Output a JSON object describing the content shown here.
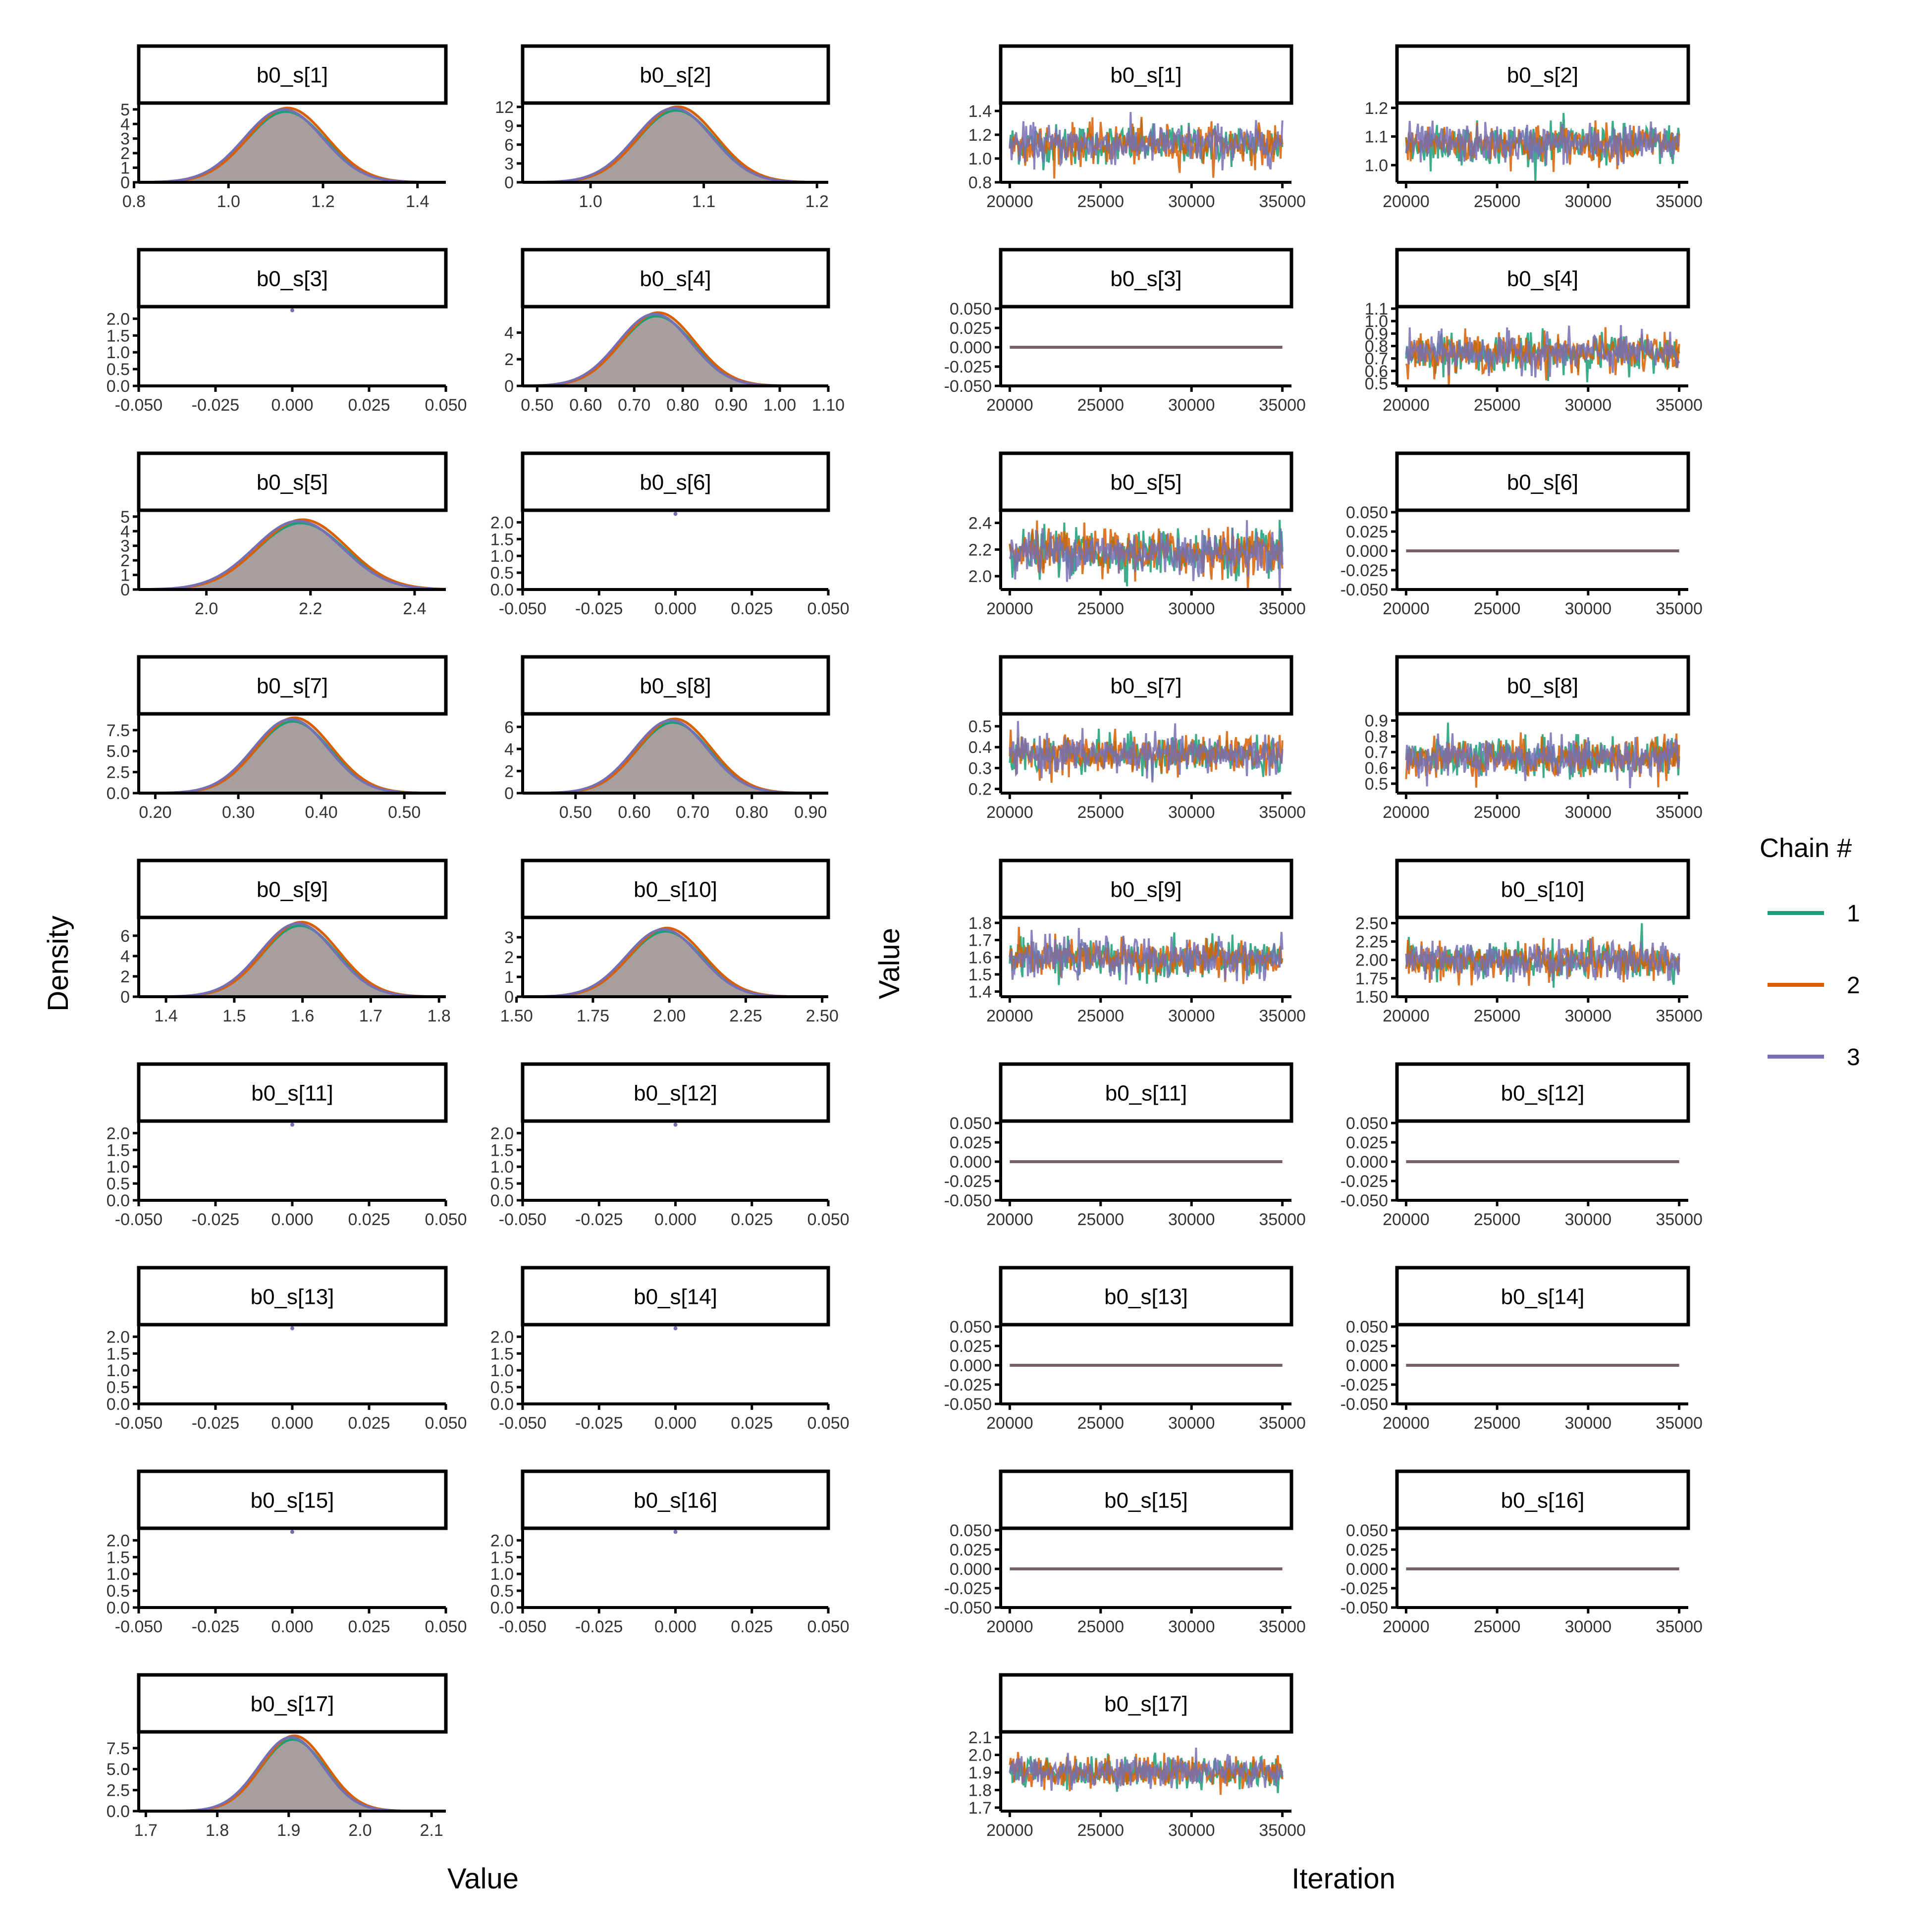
{
  "figure": {
    "density_xlabel": "Value",
    "density_ylabel": "Density",
    "trace_xlabel": "Iteration",
    "trace_ylabel": "Value",
    "legend_title": "Chain #",
    "legend_entries": [
      {
        "label": "1",
        "color": "#1B9E77"
      },
      {
        "label": "2",
        "color": "#D95F02"
      },
      {
        "label": "3",
        "color": "#7570B3"
      }
    ],
    "fill_color": "#9A9290",
    "flat_trace_color": "#766266"
  },
  "chart_data": [
    {
      "type": "area",
      "title": "Density",
      "xlabel": "Value",
      "ylabel": "Density",
      "panels": [
        {
          "title": "b0_s[1]",
          "xlim": [
            0.81,
            1.46
          ],
          "xticks": [
            0.8,
            1.0,
            1.2,
            1.4
          ],
          "ylim": [
            0,
            5.3
          ],
          "yticks": [
            0,
            1,
            2,
            3,
            4,
            5
          ],
          "mean": 1.12,
          "sd": 0.083,
          "peak": 5.0
        },
        {
          "title": "b0_s[2]",
          "xlim": [
            0.94,
            1.21
          ],
          "xticks": [
            1.0,
            1.1,
            1.2
          ],
          "ylim": [
            0,
            12.3
          ],
          "yticks": [
            0,
            3,
            6,
            9,
            12
          ],
          "mean": 1.075,
          "sd": 0.034,
          "peak": 11.8
        },
        {
          "title": "b0_s[3]",
          "xlim": [
            -0.05,
            0.05
          ],
          "xticks": [
            -0.05,
            -0.025,
            0.0,
            0.025,
            0.05
          ],
          "tick_labels": [
            "-0.050",
            "-0.025",
            "0.000",
            "0.025",
            "0.050"
          ],
          "ylim": [
            0,
            2.3
          ],
          "yticks": [
            0,
            0.5,
            1.0,
            1.5,
            2.0
          ],
          "point": [
            0.0,
            2.25
          ]
        },
        {
          "title": "b0_s[4]",
          "xlim": [
            0.47,
            1.1
          ],
          "xticks": [
            0.5,
            0.6,
            0.7,
            0.8,
            0.9,
            1.0,
            1.1
          ],
          "ylim": [
            0,
            5.8
          ],
          "yticks": [
            0,
            2,
            4
          ],
          "mean": 0.745,
          "sd": 0.075,
          "peak": 5.4
        },
        {
          "title": "b0_s[5]",
          "xlim": [
            1.87,
            2.46
          ],
          "xticks": [
            2.0,
            2.2,
            2.4
          ],
          "ylim": [
            0,
            5.3
          ],
          "yticks": [
            0,
            1,
            2,
            3,
            4,
            5
          ],
          "mean": 2.18,
          "sd": 0.085,
          "peak": 4.7
        },
        {
          "title": "b0_s[6]",
          "xlim": [
            -0.05,
            0.05
          ],
          "xticks": [
            -0.05,
            -0.025,
            0.0,
            0.025,
            0.05
          ],
          "tick_labels": [
            "-0.050",
            "-0.025",
            "0.000",
            "0.025",
            "0.050"
          ],
          "ylim": [
            0,
            2.3
          ],
          "yticks": [
            0,
            0.5,
            1.0,
            1.5,
            2.0
          ],
          "point": [
            0.0,
            2.25
          ]
        },
        {
          "title": "b0_s[7]",
          "xlim": [
            0.18,
            0.55
          ],
          "xticks": [
            0.2,
            0.3,
            0.4,
            0.5
          ],
          "ylim": [
            0,
            9.2
          ],
          "yticks": [
            0,
            2.5,
            5.0,
            7.5
          ],
          "mean": 0.365,
          "sd": 0.045,
          "peak": 8.8
        },
        {
          "title": "b0_s[8]",
          "xlim": [
            0.41,
            0.93
          ],
          "xticks": [
            0.5,
            0.6,
            0.7,
            0.8,
            0.9
          ],
          "ylim": [
            0,
            7.0
          ],
          "yticks": [
            0,
            2,
            4,
            6
          ],
          "mean": 0.665,
          "sd": 0.062,
          "peak": 6.6
        },
        {
          "title": "b0_s[9]",
          "xlim": [
            1.36,
            1.81
          ],
          "xticks": [
            1.4,
            1.5,
            1.6,
            1.7,
            1.8
          ],
          "ylim": [
            0,
            7.6
          ],
          "yticks": [
            0,
            2,
            4,
            6
          ],
          "mean": 1.595,
          "sd": 0.055,
          "peak": 7.2
        },
        {
          "title": "b0_s[10]",
          "xlim": [
            1.52,
            2.52
          ],
          "xticks": [
            1.5,
            1.75,
            2.0,
            2.25,
            2.5
          ],
          "tick_labels": [
            "1.50",
            "1.75",
            "2.00",
            "2.25",
            "2.50"
          ],
          "ylim": [
            0,
            3.9
          ],
          "yticks": [
            0,
            1,
            2,
            3
          ],
          "mean": 1.985,
          "sd": 0.12,
          "peak": 3.4
        },
        {
          "title": "b0_s[11]",
          "xlim": [
            -0.05,
            0.05
          ],
          "xticks": [
            -0.05,
            -0.025,
            0.0,
            0.025,
            0.05
          ],
          "tick_labels": [
            "-0.050",
            "-0.025",
            "0.000",
            "0.025",
            "0.050"
          ],
          "ylim": [
            0,
            2.3
          ],
          "yticks": [
            0,
            0.5,
            1.0,
            1.5,
            2.0
          ],
          "point": [
            0.0,
            2.25
          ]
        },
        {
          "title": "b0_s[12]",
          "xlim": [
            -0.05,
            0.05
          ],
          "xticks": [
            -0.05,
            -0.025,
            0.0,
            0.025,
            0.05
          ],
          "tick_labels": [
            "-0.050",
            "-0.025",
            "0.000",
            "0.025",
            "0.050"
          ],
          "ylim": [
            0,
            2.3
          ],
          "yticks": [
            0,
            0.5,
            1.0,
            1.5,
            2.0
          ],
          "point": [
            0.0,
            2.25
          ]
        },
        {
          "title": "b0_s[13]",
          "xlim": [
            -0.05,
            0.05
          ],
          "xticks": [
            -0.05,
            -0.025,
            0.0,
            0.025,
            0.05
          ],
          "tick_labels": [
            "-0.050",
            "-0.025",
            "0.000",
            "0.025",
            "0.050"
          ],
          "ylim": [
            0,
            2.3
          ],
          "yticks": [
            0,
            0.5,
            1.0,
            1.5,
            2.0
          ],
          "point": [
            0.0,
            2.25
          ]
        },
        {
          "title": "b0_s[14]",
          "xlim": [
            -0.05,
            0.05
          ],
          "xticks": [
            -0.05,
            -0.025,
            0.0,
            0.025,
            0.05
          ],
          "tick_labels": [
            "-0.050",
            "-0.025",
            "0.000",
            "0.025",
            "0.050"
          ],
          "ylim": [
            0,
            2.3
          ],
          "yticks": [
            0,
            0.5,
            1.0,
            1.5,
            2.0
          ],
          "point": [
            0.0,
            2.25
          ]
        },
        {
          "title": "b0_s[15]",
          "xlim": [
            -0.05,
            0.05
          ],
          "xticks": [
            -0.05,
            -0.025,
            0.0,
            0.025,
            0.05
          ],
          "tick_labels": [
            "-0.050",
            "-0.025",
            "0.000",
            "0.025",
            "0.050"
          ],
          "ylim": [
            0,
            2.3
          ],
          "yticks": [
            0,
            0.5,
            1.0,
            1.5,
            2.0
          ],
          "point": [
            0.0,
            2.25
          ]
        },
        {
          "title": "b0_s[16]",
          "xlim": [
            -0.05,
            0.05
          ],
          "xticks": [
            -0.05,
            -0.025,
            0.0,
            0.025,
            0.05
          ],
          "tick_labels": [
            "-0.050",
            "-0.025",
            "0.000",
            "0.025",
            "0.050"
          ],
          "ylim": [
            0,
            2.3
          ],
          "yticks": [
            0,
            0.5,
            1.0,
            1.5,
            2.0
          ],
          "point": [
            0.0,
            2.25
          ]
        },
        {
          "title": "b0_s[17]",
          "xlim": [
            1.69,
            2.12
          ],
          "xticks": [
            1.7,
            1.8,
            1.9,
            2.0,
            2.1
          ],
          "ylim": [
            0,
            9.2
          ],
          "yticks": [
            0,
            2.5,
            5.0,
            7.5
          ],
          "mean": 1.905,
          "sd": 0.045,
          "peak": 8.8
        }
      ]
    },
    {
      "type": "line",
      "title": "Trace",
      "xlabel": "Iteration",
      "ylabel": "Value",
      "xlim": [
        19500,
        35500
      ],
      "xticks": [
        20000,
        25000,
        30000,
        35000
      ],
      "series_names": [
        "1",
        "2",
        "3"
      ],
      "panels": [
        {
          "title": "b0_s[1]",
          "ylim": [
            0.8,
            1.45
          ],
          "yticks": [
            0.8,
            1.0,
            1.2,
            1.4
          ],
          "tick_labels": [
            "0.8",
            "1.0",
            "1.2",
            "1.4"
          ],
          "mean": 1.12,
          "sd": 0.083
        },
        {
          "title": "b0_s[2]",
          "ylim": [
            0.94,
            1.21
          ],
          "yticks": [
            1.0,
            1.1,
            1.2
          ],
          "tick_labels": [
            "1.0",
            "1.1",
            "1.2"
          ],
          "mean": 1.075,
          "sd": 0.034
        },
        {
          "title": "b0_s[3]",
          "ylim": [
            -0.05,
            0.05
          ],
          "yticks": [
            -0.05,
            -0.025,
            0.0,
            0.025,
            0.05
          ],
          "tick_labels": [
            "-0.050",
            "-0.025",
            "0.000",
            "0.025",
            "0.050"
          ],
          "constant": 0.0
        },
        {
          "title": "b0_s[4]",
          "ylim": [
            0.48,
            1.1
          ],
          "yticks": [
            0.5,
            0.6,
            0.7,
            0.8,
            0.9,
            1.0,
            1.1
          ],
          "tick_labels": [
            "0.5",
            "0.6",
            "0.7",
            "0.8",
            "0.9",
            "1.0",
            "1.1"
          ],
          "mean": 0.745,
          "sd": 0.075
        },
        {
          "title": "b0_s[5]",
          "ylim": [
            1.9,
            2.48
          ],
          "yticks": [
            2.0,
            2.2,
            2.4
          ],
          "tick_labels": [
            "2.0",
            "2.2",
            "2.4"
          ],
          "mean": 2.18,
          "sd": 0.085
        },
        {
          "title": "b0_s[6]",
          "ylim": [
            -0.05,
            0.05
          ],
          "yticks": [
            -0.05,
            -0.025,
            0.0,
            0.025,
            0.05
          ],
          "tick_labels": [
            "-0.050",
            "-0.025",
            "0.000",
            "0.025",
            "0.050"
          ],
          "constant": 0.0
        },
        {
          "title": "b0_s[7]",
          "ylim": [
            0.18,
            0.55
          ],
          "yticks": [
            0.2,
            0.3,
            0.4,
            0.5
          ],
          "tick_labels": [
            "0.2",
            "0.3",
            "0.4",
            "0.5"
          ],
          "mean": 0.365,
          "sd": 0.045
        },
        {
          "title": "b0_s[8]",
          "ylim": [
            0.44,
            0.93
          ],
          "yticks": [
            0.5,
            0.6,
            0.7,
            0.8,
            0.9
          ],
          "tick_labels": [
            "0.5",
            "0.6",
            "0.7",
            "0.8",
            "0.9"
          ],
          "mean": 0.665,
          "sd": 0.062
        },
        {
          "title": "b0_s[9]",
          "ylim": [
            1.37,
            1.82
          ],
          "yticks": [
            1.4,
            1.5,
            1.6,
            1.7,
            1.8
          ],
          "tick_labels": [
            "1.4",
            "1.5",
            "1.6",
            "1.7",
            "1.8"
          ],
          "mean": 1.595,
          "sd": 0.055
        },
        {
          "title": "b0_s[10]",
          "ylim": [
            1.5,
            2.55
          ],
          "yticks": [
            1.5,
            1.75,
            2.0,
            2.25,
            2.5
          ],
          "tick_labels": [
            "1.50",
            "1.75",
            "2.00",
            "2.25",
            "2.50"
          ],
          "mean": 1.985,
          "sd": 0.12
        },
        {
          "title": "b0_s[11]",
          "ylim": [
            -0.05,
            0.05
          ],
          "yticks": [
            -0.05,
            -0.025,
            0.0,
            0.025,
            0.05
          ],
          "tick_labels": [
            "-0.050",
            "-0.025",
            "0.000",
            "0.025",
            "0.050"
          ],
          "constant": 0.0
        },
        {
          "title": "b0_s[12]",
          "ylim": [
            -0.05,
            0.05
          ],
          "yticks": [
            -0.05,
            -0.025,
            0.0,
            0.025,
            0.05
          ],
          "tick_labels": [
            "-0.050",
            "-0.025",
            "0.000",
            "0.025",
            "0.050"
          ],
          "constant": 0.0
        },
        {
          "title": "b0_s[13]",
          "ylim": [
            -0.05,
            0.05
          ],
          "yticks": [
            -0.05,
            -0.025,
            0.0,
            0.025,
            0.05
          ],
          "tick_labels": [
            "-0.050",
            "-0.025",
            "0.000",
            "0.025",
            "0.050"
          ],
          "constant": 0.0
        },
        {
          "title": "b0_s[14]",
          "ylim": [
            -0.05,
            0.05
          ],
          "yticks": [
            -0.05,
            -0.025,
            0.0,
            0.025,
            0.05
          ],
          "tick_labels": [
            "-0.050",
            "-0.025",
            "0.000",
            "0.025",
            "0.050"
          ],
          "constant": 0.0
        },
        {
          "title": "b0_s[15]",
          "ylim": [
            -0.05,
            0.05
          ],
          "yticks": [
            -0.05,
            -0.025,
            0.0,
            0.025,
            0.05
          ],
          "tick_labels": [
            "-0.050",
            "-0.025",
            "0.000",
            "0.025",
            "0.050"
          ],
          "constant": 0.0
        },
        {
          "title": "b0_s[16]",
          "ylim": [
            -0.05,
            0.05
          ],
          "yticks": [
            -0.05,
            -0.025,
            0.0,
            0.025,
            0.05
          ],
          "tick_labels": [
            "-0.050",
            "-0.025",
            "0.000",
            "0.025",
            "0.050"
          ],
          "constant": 0.0
        },
        {
          "title": "b0_s[17]",
          "ylim": [
            1.68,
            2.12
          ],
          "yticks": [
            1.7,
            1.8,
            1.9,
            2.0,
            2.1
          ],
          "tick_labels": [
            "1.7",
            "1.8",
            "1.9",
            "2.0",
            "2.1"
          ],
          "mean": 1.905,
          "sd": 0.045
        }
      ]
    }
  ]
}
